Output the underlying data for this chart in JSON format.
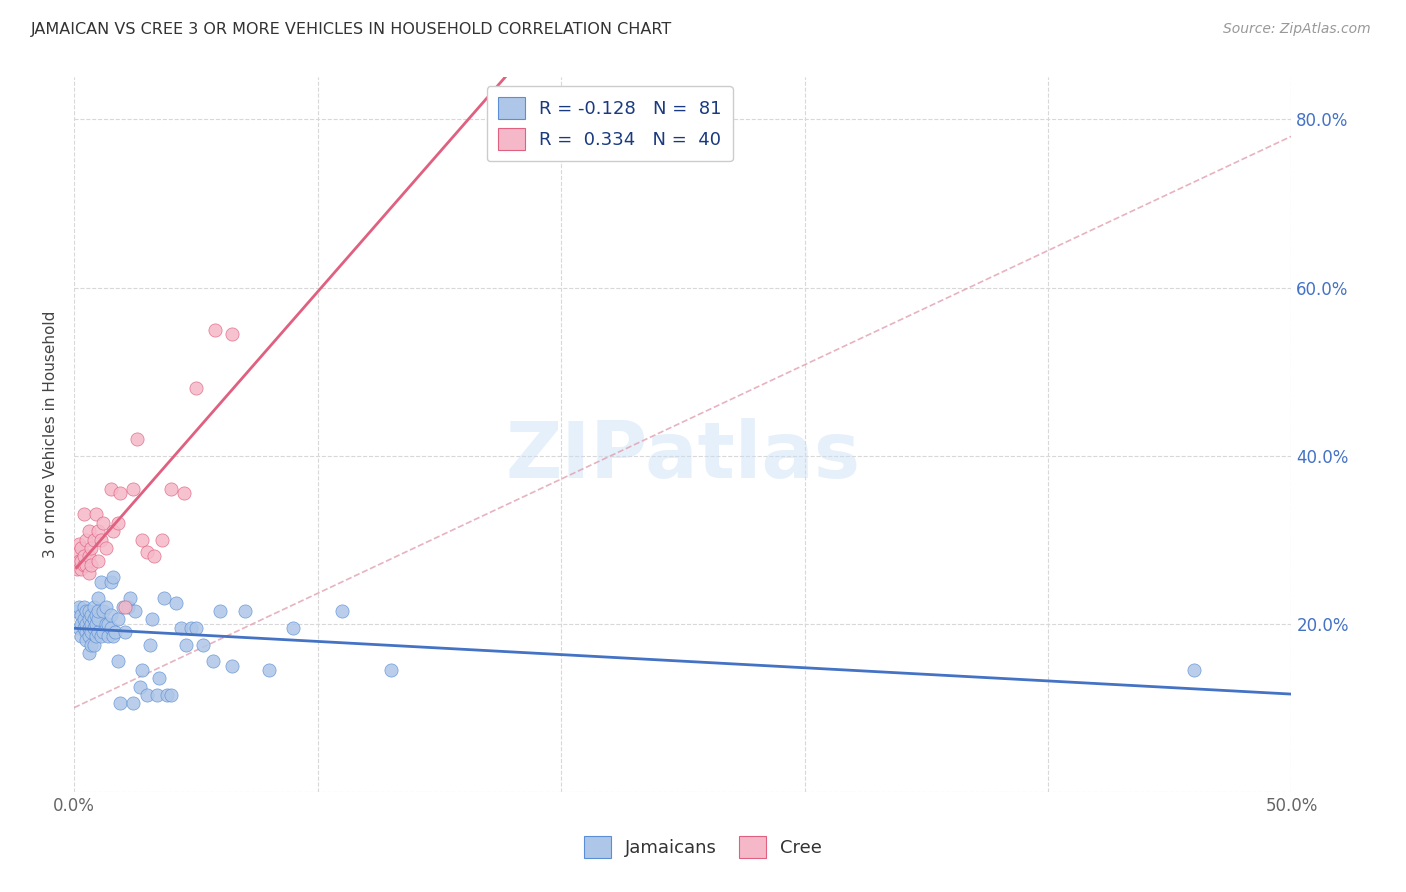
{
  "title": "JAMAICAN VS CREE 3 OR MORE VEHICLES IN HOUSEHOLD CORRELATION CHART",
  "source": "Source: ZipAtlas.com",
  "ylabel": "3 or more Vehicles in Household",
  "xlabel_jamaicans": "Jamaicans",
  "xlabel_cree": "Cree",
  "xlim": [
    0.0,
    0.5
  ],
  "ylim": [
    0.0,
    0.85
  ],
  "xtick_positions": [
    0.0,
    0.1,
    0.2,
    0.3,
    0.4,
    0.5
  ],
  "xticklabels": [
    "0.0%",
    "",
    "",
    "",
    "",
    "50.0%"
  ],
  "ytick_positions": [
    0.0,
    0.2,
    0.4,
    0.6,
    0.8
  ],
  "yticklabels_right": [
    "",
    "20.0%",
    "40.0%",
    "60.0%",
    "80.0%"
  ],
  "legend_line1": "R = -0.128   N =  81",
  "legend_line2": "R =  0.334   N =  40",
  "jamaicans_color": "#aec6e8",
  "jamaicans_edge_color": "#5b8fd4",
  "cree_color": "#f5b8c8",
  "cree_edge_color": "#e06080",
  "jamaicans_line_color": "#4472c4",
  "cree_line_color": "#e06080",
  "trend_dashed_color": "#e0a0b0",
  "watermark": "ZIPatlas",
  "jamaicans_x": [
    0.001,
    0.002,
    0.002,
    0.003,
    0.003,
    0.003,
    0.004,
    0.004,
    0.004,
    0.005,
    0.005,
    0.005,
    0.005,
    0.006,
    0.006,
    0.006,
    0.006,
    0.006,
    0.007,
    0.007,
    0.007,
    0.007,
    0.008,
    0.008,
    0.008,
    0.008,
    0.009,
    0.009,
    0.009,
    0.01,
    0.01,
    0.01,
    0.01,
    0.011,
    0.011,
    0.012,
    0.012,
    0.013,
    0.013,
    0.014,
    0.014,
    0.015,
    0.015,
    0.015,
    0.016,
    0.016,
    0.017,
    0.018,
    0.018,
    0.019,
    0.02,
    0.021,
    0.022,
    0.023,
    0.024,
    0.025,
    0.027,
    0.028,
    0.03,
    0.031,
    0.032,
    0.034,
    0.035,
    0.037,
    0.038,
    0.04,
    0.042,
    0.044,
    0.046,
    0.048,
    0.05,
    0.053,
    0.057,
    0.06,
    0.065,
    0.07,
    0.08,
    0.09,
    0.11,
    0.13,
    0.46
  ],
  "jamaicans_y": [
    0.215,
    0.195,
    0.22,
    0.21,
    0.185,
    0.2,
    0.195,
    0.205,
    0.22,
    0.19,
    0.18,
    0.2,
    0.215,
    0.165,
    0.185,
    0.195,
    0.205,
    0.215,
    0.175,
    0.19,
    0.2,
    0.21,
    0.175,
    0.195,
    0.205,
    0.22,
    0.185,
    0.2,
    0.21,
    0.19,
    0.205,
    0.215,
    0.23,
    0.185,
    0.25,
    0.19,
    0.215,
    0.2,
    0.22,
    0.185,
    0.2,
    0.195,
    0.21,
    0.25,
    0.185,
    0.255,
    0.19,
    0.155,
    0.205,
    0.105,
    0.22,
    0.19,
    0.22,
    0.23,
    0.105,
    0.215,
    0.125,
    0.145,
    0.115,
    0.175,
    0.205,
    0.115,
    0.135,
    0.23,
    0.115,
    0.115,
    0.225,
    0.195,
    0.175,
    0.195,
    0.195,
    0.175,
    0.155,
    0.215,
    0.15,
    0.215,
    0.145,
    0.195,
    0.215,
    0.145,
    0.145
  ],
  "cree_x": [
    0.001,
    0.001,
    0.002,
    0.002,
    0.003,
    0.003,
    0.003,
    0.004,
    0.004,
    0.004,
    0.005,
    0.005,
    0.006,
    0.006,
    0.006,
    0.007,
    0.007,
    0.008,
    0.009,
    0.01,
    0.01,
    0.011,
    0.012,
    0.013,
    0.015,
    0.016,
    0.018,
    0.019,
    0.021,
    0.024,
    0.026,
    0.028,
    0.03,
    0.033,
    0.036,
    0.04,
    0.045,
    0.05,
    0.058,
    0.065
  ],
  "cree_y": [
    0.265,
    0.285,
    0.275,
    0.295,
    0.265,
    0.275,
    0.29,
    0.27,
    0.28,
    0.33,
    0.27,
    0.3,
    0.26,
    0.28,
    0.31,
    0.27,
    0.29,
    0.3,
    0.33,
    0.275,
    0.31,
    0.3,
    0.32,
    0.29,
    0.36,
    0.31,
    0.32,
    0.355,
    0.22,
    0.36,
    0.42,
    0.3,
    0.285,
    0.28,
    0.3,
    0.36,
    0.355,
    0.48,
    0.55,
    0.545
  ]
}
